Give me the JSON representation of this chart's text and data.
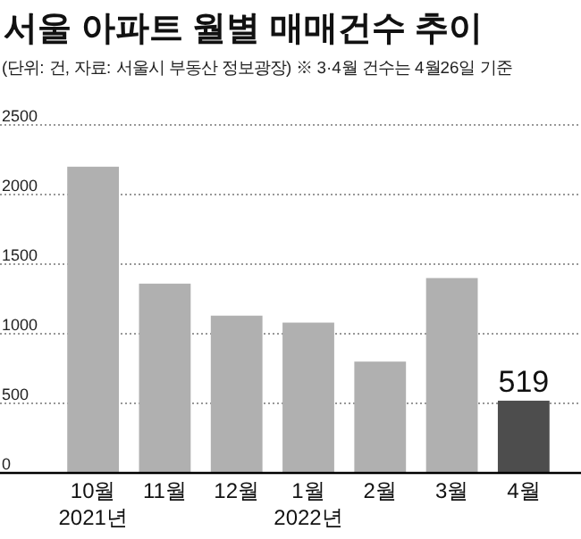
{
  "chart_data": {
    "type": "bar",
    "title": "서울 아파트 월별 매매건수 추이",
    "subtitle": "(단위: 건, 자료: 서울시 부동산 정보광장) ※ 3·4월 건수는 4월26일 기준",
    "categories": [
      "10월\n2021년",
      "11월",
      "12월",
      "1월\n2022년",
      "2월",
      "3월",
      "4월"
    ],
    "values": [
      2200,
      1360,
      1130,
      1080,
      800,
      1400,
      519
    ],
    "colors": [
      "#b0b0b0",
      "#b0b0b0",
      "#b0b0b0",
      "#b0b0b0",
      "#b0b0b0",
      "#b0b0b0",
      "#4d4d4d"
    ],
    "value_labels": [
      null,
      null,
      null,
      null,
      null,
      null,
      "519"
    ],
    "ylim": [
      0,
      2500
    ],
    "yticks": [
      0,
      500,
      1000,
      1500,
      2000,
      2500
    ],
    "grid": "y"
  }
}
